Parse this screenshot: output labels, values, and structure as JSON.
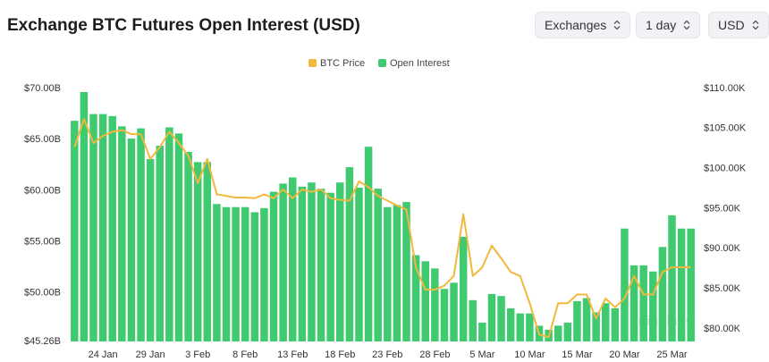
{
  "header": {
    "title": "Exchange BTC Futures Open Interest (USD)",
    "controls": [
      "Exchanges",
      "1 day",
      "USD"
    ]
  },
  "chart_data": {
    "type": "bar",
    "watermark": "coinglass",
    "categories": [
      null,
      null,
      null,
      "24 Jan",
      null,
      null,
      null,
      null,
      "29 Jan",
      null,
      null,
      null,
      null,
      "3 Feb",
      null,
      null,
      null,
      null,
      "8 Feb",
      null,
      null,
      null,
      null,
      "13 Feb",
      null,
      null,
      null,
      null,
      "18 Feb",
      null,
      null,
      null,
      null,
      "23 Feb",
      null,
      null,
      null,
      null,
      "28 Feb",
      null,
      null,
      null,
      null,
      "5 Mar",
      null,
      null,
      null,
      null,
      "10 Mar",
      null,
      null,
      null,
      null,
      "15 Mar",
      null,
      null,
      null,
      null,
      "20 Mar",
      null,
      null,
      null,
      null,
      "25 Mar",
      null,
      null
    ],
    "series": [
      {
        "name": "BTC Price",
        "color": "#f0b83c",
        "axis": "y2",
        "type": "line",
        "values": [
          102.7,
          106.2,
          103.2,
          104.1,
          104.6,
          104.8,
          104.3,
          104.3,
          101.2,
          102.7,
          104.6,
          103.2,
          101.6,
          98.2,
          101.2,
          96.8,
          96.6,
          96.4,
          96.4,
          96.3,
          96.8,
          96.3,
          97.4,
          96.3,
          97.4,
          97.1,
          97.4,
          96.3,
          96.1,
          96.0,
          98.4,
          97.7,
          96.6,
          96.0,
          95.4,
          94.9,
          87.7,
          84.9,
          84.9,
          85.4,
          86.6,
          94.3,
          86.6,
          87.7,
          90.4,
          88.8,
          87.1,
          86.6,
          83.2,
          79.3,
          79.0,
          83.2,
          83.2,
          84.3,
          84.3,
          81.3,
          83.8,
          82.7,
          83.8,
          86.6,
          84.3,
          84.3,
          87.1,
          87.7,
          87.7,
          87.7
        ]
      },
      {
        "name": "Open Interest",
        "color": "#3fca6f",
        "type": "bar",
        "values": [
          66.84,
          69.65,
          67.5,
          67.5,
          67.3,
          66.3,
          65.1,
          66.1,
          63.1,
          64.4,
          66.2,
          65.6,
          63.8,
          62.8,
          62.8,
          58.7,
          58.4,
          58.4,
          58.4,
          57.9,
          58.3,
          59.9,
          60.7,
          61.3,
          60.4,
          60.8,
          60.2,
          59.8,
          60.8,
          62.3,
          60.3,
          64.3,
          60.2,
          58.4,
          58.6,
          58.9,
          53.7,
          53.1,
          52.4,
          50.4,
          51.0,
          55.5,
          49.3,
          47.1,
          49.9,
          49.7,
          48.5,
          48.0,
          48.0,
          46.8,
          46.4,
          46.8,
          47.1,
          49.2,
          49.5,
          48.1,
          49.0,
          48.5,
          56.3,
          52.7,
          52.7,
          52.1,
          54.5,
          57.6,
          56.3,
          56.3
        ]
      }
    ],
    "ylim": [
      45.26,
      70
    ],
    "yticks": [
      {
        "value": 45.26,
        "label": "$45.26B"
      },
      {
        "value": 50,
        "label": "$50.00B"
      },
      {
        "value": 55,
        "label": "$55.00B"
      },
      {
        "value": 60,
        "label": "$60.00B"
      },
      {
        "value": 65,
        "label": "$65.00B"
      },
      {
        "value": 70,
        "label": "$70.00B"
      }
    ],
    "y2lim": [
      78.44,
      110
    ],
    "y2ticks": [
      {
        "value": 80,
        "label": "$80.00K"
      },
      {
        "value": 85,
        "label": "$85.00K"
      },
      {
        "value": 90,
        "label": "$90.00K"
      },
      {
        "value": 95,
        "label": "$95.00K"
      },
      {
        "value": 100,
        "label": "$100.00K"
      },
      {
        "value": 105,
        "label": "$105.00K"
      },
      {
        "value": 110,
        "label": "$110.00K"
      }
    ]
  }
}
